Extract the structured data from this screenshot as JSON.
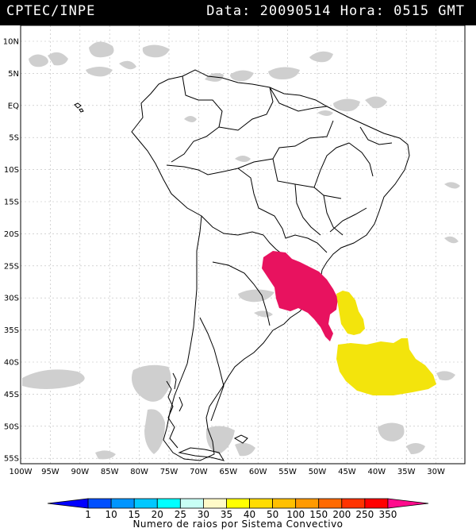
{
  "header": {
    "agency": "CPTEC/INPE",
    "datetime": "Data: 20090514 Hora: 0515 GMT"
  },
  "map": {
    "lat_labels": [
      "10N",
      "5N",
      "EQ",
      "5S",
      "10S",
      "15S",
      "20S",
      "25S",
      "30S",
      "35S",
      "40S",
      "45S",
      "50S",
      "55S"
    ],
    "lon_labels": [
      "100W",
      "95W",
      "90W",
      "85W",
      "80W",
      "75W",
      "70W",
      "65W",
      "60W",
      "55W",
      "50W",
      "45W",
      "40W",
      "35W",
      "30W"
    ],
    "colors": {
      "ocean": "#ffffff",
      "land_outline": "#000000",
      "cloud": "#cccccc",
      "cloud_dark": "#9a9a9a",
      "system_magenta": "#e8125f",
      "system_yellow": "#f3e40c"
    }
  },
  "legend": {
    "title": "Numero de raios por Sistema Convectivo",
    "colors": [
      "#0000ff",
      "#0050ff",
      "#0095ff",
      "#00c8ff",
      "#00ffff",
      "#c8fff5",
      "#fffac8",
      "#ffff00",
      "#ffdc00",
      "#ffc000",
      "#ff9a00",
      "#ff6a00",
      "#ff3300",
      "#ff0000",
      "#ff0a8c"
    ],
    "labels": [
      "1",
      "10",
      "15",
      "20",
      "25",
      "30",
      "35",
      "40",
      "50",
      "100",
      "150",
      "200",
      "250",
      "350"
    ]
  }
}
